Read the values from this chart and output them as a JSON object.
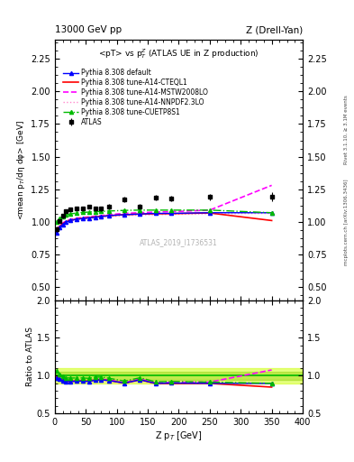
{
  "title_left": "13000 GeV pp",
  "title_right": "Z (Drell-Yan)",
  "plot_title": "<pT> vs p$^Z_T$ (ATLAS UE in Z production)",
  "ylabel_main": "<mean p$_T$/dη dφ> [GeV]",
  "ylabel_ratio": "Ratio to ATLAS",
  "xlabel": "Z p$_T$ [GeV]",
  "watermark": "ATLAS_2019_I1736531",
  "right_label_top": "Rivet 3.1.10, ≥ 3.1M events",
  "right_label_bot": "mcplots.cern.ch [arXiv:1306.3436]",
  "ylim_main": [
    0.4,
    2.4
  ],
  "ylim_ratio": [
    0.5,
    2.0
  ],
  "xlim": [
    0,
    400
  ],
  "atlas_x": [
    2.5,
    7.5,
    12.5,
    17.5,
    25,
    35,
    45,
    55,
    65,
    75,
    87.5,
    112.5,
    137.5,
    162.5,
    187.5,
    250,
    350
  ],
  "atlas_y": [
    0.942,
    1.005,
    1.045,
    1.08,
    1.095,
    1.1,
    1.105,
    1.115,
    1.1,
    1.1,
    1.12,
    1.17,
    1.12,
    1.185,
    1.18,
    1.19,
    1.19
  ],
  "atlas_yerr": [
    0.02,
    0.015,
    0.015,
    0.015,
    0.012,
    0.012,
    0.012,
    0.015,
    0.015,
    0.015,
    0.015,
    0.02,
    0.02,
    0.02,
    0.02,
    0.025,
    0.035
  ],
  "default_x": [
    2.5,
    7.5,
    12.5,
    17.5,
    25,
    35,
    45,
    55,
    65,
    75,
    87.5,
    112.5,
    137.5,
    162.5,
    187.5,
    250,
    350
  ],
  "default_y": [
    0.915,
    0.958,
    0.98,
    0.997,
    1.01,
    1.02,
    1.025,
    1.03,
    1.035,
    1.04,
    1.048,
    1.055,
    1.06,
    1.065,
    1.065,
    1.07,
    1.07
  ],
  "cteql1_x": [
    2.5,
    7.5,
    12.5,
    17.5,
    25,
    35,
    45,
    55,
    65,
    75,
    87.5,
    112.5,
    137.5,
    162.5,
    187.5,
    250,
    350
  ],
  "cteql1_y": [
    0.925,
    0.965,
    0.985,
    1.0,
    1.012,
    1.022,
    1.028,
    1.033,
    1.038,
    1.042,
    1.048,
    1.055,
    1.06,
    1.062,
    1.063,
    1.068,
    1.01
  ],
  "mstw_x": [
    2.5,
    7.5,
    12.5,
    17.5,
    25,
    35,
    45,
    55,
    65,
    75,
    87.5,
    112.5,
    137.5,
    162.5,
    187.5,
    250,
    350
  ],
  "mstw_y": [
    0.93,
    0.97,
    0.99,
    1.005,
    1.018,
    1.028,
    1.033,
    1.038,
    1.043,
    1.048,
    1.055,
    1.065,
    1.07,
    1.075,
    1.078,
    1.09,
    1.28
  ],
  "nnpdf_x": [
    2.5,
    7.5,
    12.5,
    17.5,
    25,
    35,
    45,
    55,
    65,
    75,
    87.5,
    112.5,
    137.5,
    162.5,
    187.5,
    250,
    350
  ],
  "nnpdf_y": [
    0.928,
    0.962,
    0.98,
    0.995,
    1.005,
    1.015,
    1.02,
    1.025,
    1.03,
    1.035,
    1.04,
    1.048,
    1.052,
    1.055,
    1.057,
    1.062,
    1.065
  ],
  "cuetp_x": [
    2.5,
    7.5,
    12.5,
    17.5,
    25,
    35,
    45,
    55,
    65,
    75,
    87.5,
    112.5,
    137.5,
    162.5,
    187.5,
    250,
    350
  ],
  "cuetp_y": [
    1.002,
    1.025,
    1.04,
    1.052,
    1.06,
    1.068,
    1.072,
    1.075,
    1.078,
    1.08,
    1.083,
    1.088,
    1.09,
    1.09,
    1.09,
    1.09,
    1.07
  ],
  "default_ratio": [
    0.97,
    0.953,
    0.938,
    0.923,
    0.923,
    0.927,
    0.928,
    0.924,
    0.941,
    0.945,
    0.936,
    0.902,
    0.946,
    0.898,
    0.903,
    0.899,
    0.899
  ],
  "cteql1_ratio": [
    0.981,
    0.96,
    0.943,
    0.926,
    0.924,
    0.929,
    0.931,
    0.927,
    0.944,
    0.947,
    0.936,
    0.902,
    0.946,
    0.897,
    0.896,
    0.898,
    0.849
  ],
  "mstw_ratio": [
    0.987,
    0.965,
    0.947,
    0.93,
    0.929,
    0.936,
    0.937,
    0.932,
    0.95,
    0.953,
    0.942,
    0.909,
    0.955,
    0.905,
    0.912,
    0.916,
    1.076
  ],
  "nnpdf_ratio": [
    0.985,
    0.957,
    0.938,
    0.921,
    0.918,
    0.923,
    0.924,
    0.919,
    0.936,
    0.94,
    0.929,
    0.895,
    0.938,
    0.889,
    0.896,
    0.893,
    0.899
  ],
  "cuetp_ratio": [
    1.064,
    1.02,
    0.995,
    0.974,
    0.968,
    0.971,
    0.97,
    0.965,
    0.981,
    0.982,
    0.966,
    0.928,
    0.973,
    0.919,
    0.924,
    0.916,
    0.899
  ],
  "color_default": "#0000ff",
  "color_cteql1": "#ff0000",
  "color_mstw": "#ff00ff",
  "color_nnpdf": "#ff88cc",
  "color_cuetp": "#00bb00",
  "color_atlas": "#000000",
  "color_band_outer": "#ccff00",
  "color_band_inner": "#88cc00",
  "color_ratio_line": "#00bb00"
}
